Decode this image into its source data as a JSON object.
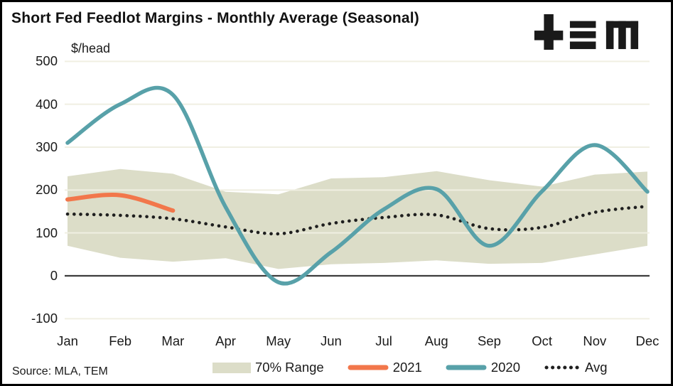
{
  "title": "Short Fed Feedlot Margins - Monthly Average (Seasonal)",
  "logo": {
    "name": "TEM",
    "color": "#1a1a1a"
  },
  "source": "Source: MLA, TEM",
  "colors": {
    "band": "#dcddc8",
    "line_2021": "#f2774b",
    "line_2020": "#58a1a9",
    "avg_dots": "#1f1f1f",
    "gridline": "#f0efe2",
    "zero_line": "#3d3d3d",
    "text": "#1a1a1a"
  },
  "chart_data": {
    "type": "line",
    "title": "Short Fed Feedlot Margins - Monthly Average (Seasonal)",
    "unit_label": "$/head",
    "categories": [
      "Jan",
      "Feb",
      "Mar",
      "Apr",
      "May",
      "Jun",
      "Jul",
      "Aug",
      "Sep",
      "Oct",
      "Nov",
      "Dec"
    ],
    "y_ticks": [
      500,
      400,
      300,
      200,
      100,
      0,
      -100
    ],
    "ylim": [
      -100,
      500
    ],
    "grid": true,
    "legend_position": "bottom",
    "series": [
      {
        "name": "70% Range",
        "type": "band",
        "color": "#dcddc8",
        "upper": [
          232,
          249,
          238,
          196,
          190,
          227,
          230,
          244,
          223,
          208,
          236,
          243
        ],
        "lower": [
          70,
          42,
          33,
          41,
          16,
          27,
          30,
          36,
          28,
          30,
          50,
          70
        ]
      },
      {
        "name": "2021",
        "type": "line",
        "color": "#f2774b",
        "values": [
          178,
          188,
          152,
          null,
          null,
          null,
          null,
          null,
          null,
          null,
          null,
          null
        ]
      },
      {
        "name": "2020",
        "type": "line",
        "color": "#58a1a9",
        "values": [
          310,
          400,
          422,
          160,
          -15,
          55,
          155,
          202,
          70,
          197,
          305,
          196
        ]
      },
      {
        "name": "Avg",
        "type": "dotted-line",
        "color": "#1f1f1f",
        "values": [
          144,
          141,
          133,
          114,
          98,
          122,
          136,
          142,
          110,
          113,
          148,
          162
        ]
      }
    ]
  },
  "legend": {
    "items": [
      {
        "label": "70% Range",
        "swatch": "band"
      },
      {
        "label": "2021",
        "swatch": "line"
      },
      {
        "label": "2020",
        "swatch": "line"
      },
      {
        "label": "Avg",
        "swatch": "dots"
      }
    ]
  }
}
